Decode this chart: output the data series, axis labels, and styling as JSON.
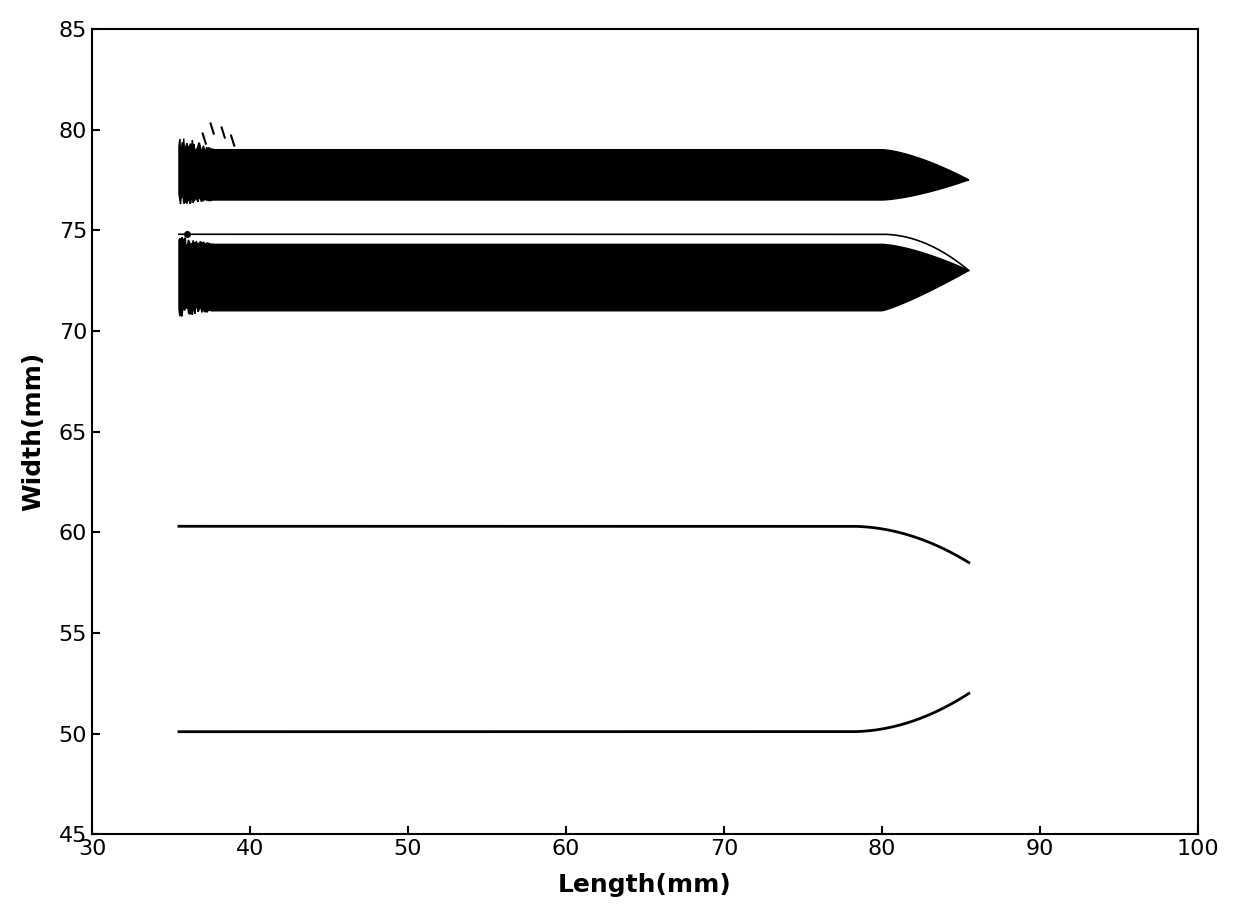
{
  "xlabel": "Length(mm)",
  "ylabel": "Width(mm)",
  "xlim": [
    30,
    100
  ],
  "ylim": [
    45,
    85
  ],
  "xticks": [
    30,
    40,
    50,
    60,
    70,
    80,
    90,
    100
  ],
  "yticks": [
    45,
    50,
    55,
    60,
    65,
    70,
    75,
    80,
    85
  ],
  "xlabel_fontsize": 18,
  "ylabel_fontsize": 18,
  "tick_fontsize": 16,
  "background_color": "#ffffff",
  "line_color": "#000000",
  "x_start": 35.5,
  "x_end": 85.5,
  "upper_band_top_flat": 79.0,
  "upper_band_bottom_flat": 76.5,
  "upper_band_tip_y": 77.5,
  "lower_band_top_flat": 74.3,
  "lower_band_bottom_flat": 71.0,
  "lower_band_tip_y": 73.0,
  "thin_line_y": 74.8,
  "taper_start_x": 80.0,
  "tip_x": 85.5,
  "upper_curve_y_start": 60.3,
  "upper_curve_y_end": 58.5,
  "lower_curve_y_start": 50.1,
  "lower_curve_y_end": 52.0,
  "curve_taper_start_x": 78.0
}
